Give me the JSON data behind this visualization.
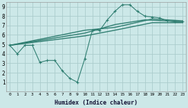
{
  "bg_color": "#cce8e8",
  "grid_color": "#aacccc",
  "line_color": "#2e7d70",
  "xlabel": "Humidex (Indice chaleur)",
  "xlim": [
    -0.5,
    23.5
  ],
  "ylim": [
    0,
    9.5
  ],
  "xticks": [
    0,
    1,
    2,
    3,
    4,
    5,
    6,
    7,
    8,
    9,
    10,
    11,
    12,
    13,
    14,
    15,
    16,
    17,
    18,
    19,
    20,
    21,
    22,
    23
  ],
  "yticks": [
    1,
    2,
    3,
    4,
    5,
    6,
    7,
    8,
    9
  ],
  "zigzag": {
    "x": [
      0,
      1,
      2,
      3,
      4,
      5,
      6,
      7,
      8,
      9,
      10,
      11,
      12,
      13,
      14,
      15,
      16,
      17,
      18,
      19,
      20,
      21,
      22,
      23
    ],
    "y": [
      4.9,
      4.0,
      4.9,
      4.9,
      3.1,
      3.3,
      3.3,
      2.2,
      1.4,
      1.0,
      3.5,
      6.5,
      6.5,
      7.6,
      8.5,
      9.2,
      9.2,
      8.5,
      8.0,
      7.9,
      7.8,
      7.5,
      7.4,
      7.4
    ]
  },
  "smooth_lines": [
    {
      "x": [
        0,
        23
      ],
      "y": [
        4.9,
        7.4
      ]
    },
    {
      "x": [
        0,
        23
      ],
      "y": [
        4.9,
        7.4
      ]
    },
    {
      "x": [
        0,
        23
      ],
      "y": [
        4.9,
        7.4
      ]
    }
  ],
  "line1": {
    "x": [
      0,
      10,
      14,
      19,
      23
    ],
    "y": [
      4.9,
      6.5,
      6.8,
      7.7,
      7.5
    ]
  },
  "line2": {
    "x": [
      0,
      10,
      14,
      18,
      23
    ],
    "y": [
      4.9,
      6.2,
      7.1,
      7.6,
      7.4
    ]
  },
  "line3": {
    "x": [
      0,
      10,
      14,
      19,
      23
    ],
    "y": [
      4.9,
      5.9,
      6.5,
      7.3,
      7.3
    ]
  }
}
